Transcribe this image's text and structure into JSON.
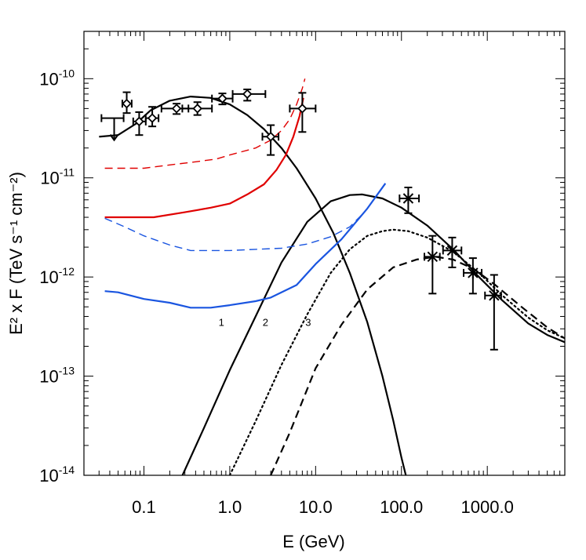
{
  "chart_data": {
    "type": "line",
    "xlabel": "E (GeV)",
    "ylabel": "E² x F (TeV s⁻¹ cm⁻²)",
    "x_scale": "log",
    "y_scale": "log",
    "xlim": [
      0.02,
      8000
    ],
    "ylim": [
      1e-14,
      3e-10
    ],
    "x_tick_values": [
      0.1,
      1,
      10,
      100,
      1000
    ],
    "x_tick_labels": [
      "0.1",
      "1.0",
      "10.0",
      "100.0",
      "1000.0"
    ],
    "y_tick_values": [
      1e-10,
      1e-11,
      1e-12,
      1e-13,
      1e-14
    ],
    "y_tick_labels": [
      {
        "base": "10",
        "exp": "-10"
      },
      {
        "base": "10",
        "exp": "-11"
      },
      {
        "base": "10",
        "exp": "-12"
      },
      {
        "base": "10",
        "exp": "-13"
      },
      {
        "base": "10",
        "exp": "-14"
      }
    ],
    "curve_labels": [
      {
        "text": "1",
        "x": 0.8,
        "y": 3.2e-13
      },
      {
        "text": "2",
        "x": 2.6,
        "y": 3.2e-13
      },
      {
        "text": "3",
        "x": 8.2,
        "y": 3.2e-13
      }
    ],
    "series": [
      {
        "style": "solid",
        "color": "#000000",
        "points": [
          [
            0.03,
            2.6e-11
          ],
          [
            0.05,
            2.7e-11
          ],
          [
            0.08,
            3.5e-11
          ],
          [
            0.12,
            4.8e-11
          ],
          [
            0.2,
            6e-11
          ],
          [
            0.35,
            6.6e-11
          ],
          [
            0.6,
            6.4e-11
          ],
          [
            1.0,
            5.5e-11
          ],
          [
            1.6,
            4.3e-11
          ],
          [
            2.5,
            3.1e-11
          ],
          [
            4.0,
            2e-11
          ],
          [
            6.0,
            1.25e-11
          ],
          [
            10,
            6.2e-12
          ],
          [
            16,
            2.8e-12
          ],
          [
            25,
            1.1e-12
          ],
          [
            40,
            3.5e-13
          ],
          [
            60,
            1e-13
          ],
          [
            80,
            3.6e-14
          ],
          [
            100,
            1.5e-14
          ],
          [
            120,
            8e-15
          ]
        ]
      },
      {
        "style": "solid",
        "color": "#000000",
        "points": [
          [
            0.25,
            8e-15
          ],
          [
            0.5,
            3e-14
          ],
          [
            1.0,
            1.15e-13
          ],
          [
            2.0,
            4e-13
          ],
          [
            4.0,
            1.4e-12
          ],
          [
            8.0,
            3.6e-12
          ],
          [
            15,
            5.8e-12
          ],
          [
            25,
            6.7e-12
          ],
          [
            35,
            6.8e-12
          ],
          [
            60,
            6.2e-12
          ],
          [
            100,
            5e-12
          ],
          [
            200,
            3.3e-12
          ],
          [
            400,
            1.9e-12
          ],
          [
            800,
            1e-12
          ],
          [
            1500,
            5.8e-13
          ],
          [
            3000,
            3.4e-13
          ],
          [
            5000,
            2.6e-13
          ],
          [
            8000,
            2.2e-13
          ]
        ]
      },
      {
        "style": "dotted",
        "color": "#000000",
        "points": [
          [
            1.0,
            1e-14
          ],
          [
            2.0,
            3.5e-14
          ],
          [
            4.0,
            1.3e-13
          ],
          [
            8.0,
            4.2e-13
          ],
          [
            15,
            1.1e-12
          ],
          [
            25,
            1.9e-12
          ],
          [
            40,
            2.6e-12
          ],
          [
            60,
            2.9e-12
          ],
          [
            80,
            3e-12
          ],
          [
            120,
            2.9e-12
          ],
          [
            200,
            2.5e-12
          ],
          [
            400,
            1.8e-12
          ],
          [
            800,
            1.1e-12
          ],
          [
            1500,
            6.5e-13
          ],
          [
            3000,
            3.9e-13
          ],
          [
            5000,
            2.9e-13
          ],
          [
            8000,
            2.4e-13
          ]
        ]
      },
      {
        "style": "dashed",
        "color": "#000000",
        "points": [
          [
            3.0,
            1e-14
          ],
          [
            5.0,
            2.7e-14
          ],
          [
            10,
            1.2e-13
          ],
          [
            20,
            3.3e-13
          ],
          [
            40,
            7.5e-13
          ],
          [
            80,
            1.25e-12
          ],
          [
            150,
            1.5e-12
          ],
          [
            250,
            1.6e-12
          ],
          [
            400,
            1.5e-12
          ],
          [
            700,
            1.2e-12
          ],
          [
            1200,
            8.5e-13
          ],
          [
            2500,
            5e-13
          ],
          [
            5000,
            3.1e-13
          ],
          [
            8000,
            2.4e-13
          ]
        ]
      },
      {
        "style": "solid",
        "color": "#e00000",
        "points": [
          [
            0.035,
            4e-12
          ],
          [
            0.07,
            4e-12
          ],
          [
            0.13,
            4e-12
          ],
          [
            0.3,
            4.5e-12
          ],
          [
            0.6,
            5e-12
          ],
          [
            1.0,
            5.5e-12
          ],
          [
            1.6,
            6.8e-12
          ],
          [
            2.5,
            8.6e-12
          ],
          [
            3.5,
            1.2e-11
          ],
          [
            4.5,
            1.7e-11
          ],
          [
            5.5,
            2.6e-11
          ],
          [
            6.5,
            4.2e-11
          ],
          [
            7.2,
            6.4e-11
          ]
        ]
      },
      {
        "style": "dashed",
        "color": "#e00000",
        "points": [
          [
            0.035,
            1.25e-11
          ],
          [
            0.1,
            1.25e-11
          ],
          [
            0.2,
            1.35e-11
          ],
          [
            0.4,
            1.45e-11
          ],
          [
            0.7,
            1.55e-11
          ],
          [
            1.0,
            1.7e-11
          ],
          [
            2.0,
            2e-11
          ],
          [
            3.0,
            2.4e-11
          ],
          [
            4.0,
            3e-11
          ],
          [
            5.0,
            3.9e-11
          ],
          [
            6.0,
            5.5e-11
          ],
          [
            7.0,
            8e-11
          ],
          [
            7.5,
            1e-10
          ]
        ]
      },
      {
        "style": "solid",
        "color": "#1a55e0",
        "points": [
          [
            0.035,
            7.2e-13
          ],
          [
            0.05,
            7e-13
          ],
          [
            0.1,
            6e-13
          ],
          [
            0.2,
            5.5e-13
          ],
          [
            0.35,
            4.9e-13
          ],
          [
            0.6,
            4.9e-13
          ],
          [
            1.0,
            5.2e-13
          ],
          [
            2.0,
            5.7e-13
          ],
          [
            3.0,
            6.2e-13
          ],
          [
            6.0,
            8.3e-13
          ],
          [
            10,
            1.35e-12
          ],
          [
            20,
            2.4e-12
          ],
          [
            40,
            4.9e-12
          ],
          [
            65,
            8.8e-12
          ]
        ]
      },
      {
        "style": "dashed",
        "color": "#1a55e0",
        "points": [
          [
            0.035,
            3.9e-12
          ],
          [
            0.06,
            3.2e-12
          ],
          [
            0.1,
            2.6e-12
          ],
          [
            0.2,
            2.1e-12
          ],
          [
            0.35,
            1.85e-12
          ],
          [
            0.6,
            1.85e-12
          ],
          [
            1.0,
            1.85e-12
          ],
          [
            2.0,
            1.9e-12
          ],
          [
            4.0,
            1.95e-12
          ],
          [
            8.0,
            2.15e-12
          ],
          [
            15,
            2.55e-12
          ],
          [
            25,
            3.2e-12
          ],
          [
            35,
            4.3e-12
          ]
        ]
      }
    ],
    "data_points_diamond": [
      {
        "x": 0.045,
        "y": 4e-11,
        "xerr": [
          0.032,
          0.058
        ],
        "upper_limit": true
      },
      {
        "x": 0.063,
        "y": 5.6e-11,
        "xerr": [
          0.056,
          0.072
        ],
        "yerr": [
          4.5e-11,
          7.3e-11
        ]
      },
      {
        "x": 0.088,
        "y": 3.7e-11,
        "xerr": [
          0.075,
          0.105
        ],
        "yerr": [
          2.7e-11,
          4.6e-11
        ]
      },
      {
        "x": 0.125,
        "y": 4e-11,
        "xerr": [
          0.105,
          0.148
        ],
        "yerr": [
          3.3e-11,
          5.2e-11
        ]
      },
      {
        "x": 0.24,
        "y": 5e-11,
        "xerr": [
          0.16,
          0.33
        ],
        "yerr": [
          4.4e-11,
          5.6e-11
        ]
      },
      {
        "x": 0.42,
        "y": 5e-11,
        "xerr": [
          0.28,
          0.62
        ],
        "yerr": [
          4.3e-11,
          5.8e-11
        ]
      },
      {
        "x": 0.82,
        "y": 6.3e-11,
        "xerr": [
          0.62,
          1.08
        ],
        "yerr": [
          5.5e-11,
          7.1e-11
        ]
      },
      {
        "x": 1.6,
        "y": 7e-11,
        "xerr": [
          1.08,
          2.6
        ],
        "yerr": [
          6e-11,
          7.8e-11
        ]
      },
      {
        "x": 3.0,
        "y": 2.6e-11,
        "xerr": [
          2.4,
          3.7
        ],
        "yerr": [
          1.7e-11,
          3.4e-11
        ]
      },
      {
        "x": 7.0,
        "y": 5e-11,
        "xerr": [
          5.0,
          10.0
        ],
        "yerr": [
          2.9e-11,
          7.2e-11
        ]
      }
    ],
    "data_points_star": [
      {
        "x": 120,
        "y": 6.2e-12,
        "xerr": [
          95,
          160
        ],
        "yerr": [
          4.4e-12,
          8e-12
        ]
      },
      {
        "x": 230,
        "y": 1.6e-12,
        "xerr": [
          185,
          280
        ],
        "yerr": [
          6.8e-13,
          2.6e-12
        ]
      },
      {
        "x": 390,
        "y": 1.85e-12,
        "xerr": [
          305,
          500
        ],
        "yerr": [
          1.25e-12,
          2.5e-12
        ]
      },
      {
        "x": 680,
        "y": 1.1e-12,
        "xerr": [
          530,
          860
        ],
        "yerr": [
          6.8e-13,
          1.55e-12
        ]
      },
      {
        "x": 1200,
        "y": 6.5e-13,
        "xerr": [
          940,
          1450
        ],
        "yerr": [
          1.85e-13,
          1.05e-12
        ]
      }
    ]
  }
}
